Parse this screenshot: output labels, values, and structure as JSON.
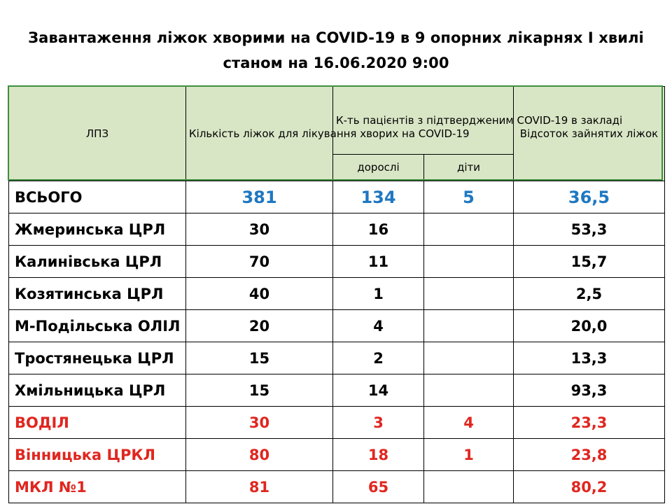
{
  "title": {
    "line1": "Завантаження ліжок хворими на COVID-19 в 9 опорних лікарнях I хвилі",
    "line2": "станом  на 16.06.2020  9:00"
  },
  "header": {
    "lpz": "ЛПЗ",
    "beds": "Кількість ліжок для лікування хворих на  COVID-19",
    "patients": "К-ть пацієнтів з підтвердженим COVID-19 в закладі",
    "adults": "дорослі",
    "children": "діти",
    "percent": "Відсоток зайнятих ліжок"
  },
  "total": {
    "name": "ВСЬОГО",
    "beds": "381",
    "adults": "134",
    "children": "5",
    "percent": "36,5"
  },
  "rows": [
    {
      "name": "Жмеринська ЦРЛ",
      "beds": "30",
      "adults": "16",
      "children": "",
      "percent": "53,3"
    },
    {
      "name": "Калинівська ЦРЛ",
      "beds": "70",
      "adults": "11",
      "children": "",
      "percent": "15,7"
    },
    {
      "name": "Козятинська ЦРЛ",
      "beds": "40",
      "adults": "1",
      "children": "",
      "percent": "2,5"
    },
    {
      "name": "М-Подільська ОЛІЛ",
      "beds": "20",
      "adults": "4",
      "children": "",
      "percent": "20,0"
    },
    {
      "name": "Тростянецька ЦРЛ",
      "beds": "15",
      "adults": "2",
      "children": "",
      "percent": "13,3"
    },
    {
      "name": "Хмільницька ЦРЛ",
      "beds": "15",
      "adults": "14",
      "children": "",
      "percent": "93,3"
    },
    {
      "name": "ВОДІЛ",
      "beds": "30",
      "adults": "3",
      "children": "4",
      "percent": "23,3"
    },
    {
      "name": "Вінницька ЦРКЛ",
      "beds": "80",
      "adults": "18",
      "children": "1",
      "percent": "23,8"
    },
    {
      "name": "МКЛ №1",
      "beds": "81",
      "adults": "65",
      "children": "",
      "percent": "80,2"
    }
  ],
  "colors": {
    "header_bg": "#d9e6c6",
    "header_border": "#3f8f3f",
    "total_numbers": "#1f78c1",
    "highlight_rows": "#e0261f"
  }
}
